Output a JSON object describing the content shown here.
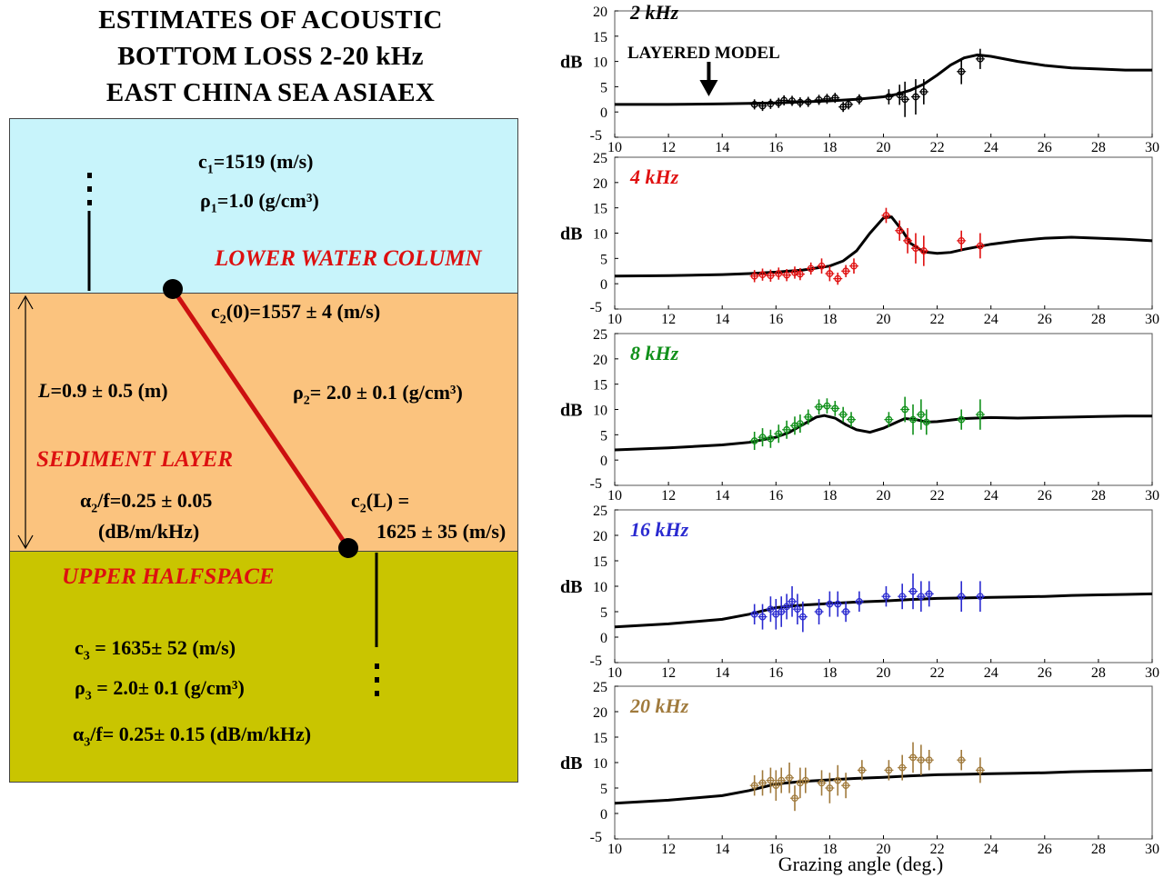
{
  "title_lines": [
    "ESTIMATES OF ACOUSTIC",
    "BOTTOM LOSS 2-20 kHz",
    "EAST CHINA SEA ASIAEX"
  ],
  "layers": {
    "water": {
      "name": "LOWER WATER COLUMN",
      "c1": "c",
      "c1_sub": "1",
      "c1_val": "=1519 (m/s)",
      "rho1": "ρ",
      "rho1_sub": "1",
      "rho1_val": "=1.0 (g/cm³)"
    },
    "sediment": {
      "name": "SEDIMENT LAYER",
      "c2_0_a": "c",
      "c2_0_sub": "2",
      "c2_0_b": "(0)=1557 ± 4 (m/s)",
      "L": "L",
      "L_val": "=0.9 ± 0.5 (m)",
      "rho2": "ρ",
      "rho2_sub": "2",
      "rho2_val": "= 2.0 ± 0.1 (g/cm³)",
      "alpha2": "α",
      "alpha2_sub": "2",
      "alpha2_val": "/f=0.25 ± 0.05",
      "alpha2_units": "(dB/m/kHz)",
      "c2_L_a": "c",
      "c2_L_sub": "2",
      "c2_L_b": "(L) =",
      "c2_L_val": "1625 ± 35 (m/s)"
    },
    "halfspace": {
      "name": "UPPER HALFSPACE",
      "c3": "c",
      "c3_sub": "3",
      "c3_val": " = 1635± 52 (m/s)",
      "rho3": "ρ",
      "rho3_sub": "3",
      "rho3_val": " = 2.0± 0.1 (g/cm³)",
      "alpha3": "α",
      "alpha3_sub": "3",
      "alpha3_val": "/f= 0.25± 0.15 (dB/m/kHz)"
    }
  },
  "colors": {
    "water": "#c8f4fb",
    "sediment": "#fbc37e",
    "halfspace": "#c9c500",
    "profile_line": "#cc1010",
    "label_red": "#dd1010"
  },
  "chart_data": [
    {
      "type": "scatter",
      "freq_label": "2 kHz",
      "color": "#000000",
      "ylabel": "dB",
      "ylim": [
        -5,
        20
      ],
      "yticks": [
        -5,
        0,
        5,
        10,
        15,
        20
      ],
      "xlim": [
        10,
        30
      ],
      "xticks": [
        10,
        12,
        14,
        16,
        18,
        20,
        22,
        24,
        26,
        28,
        30
      ],
      "annotation": "LAYERED MODEL",
      "annotation_arrow_x": 13.5,
      "model_line": {
        "x": [
          10,
          12,
          14,
          15,
          16,
          17,
          18,
          19,
          20,
          20.5,
          21,
          21.5,
          22,
          22.5,
          23,
          23.5,
          24,
          25,
          26,
          27,
          28,
          29,
          30
        ],
        "y": [
          1.5,
          1.5,
          1.6,
          1.7,
          1.8,
          2.0,
          2.2,
          2.5,
          3.0,
          3.5,
          4.3,
          5.5,
          7.3,
          9.3,
          10.7,
          11.3,
          11.0,
          10.0,
          9.2,
          8.7,
          8.5,
          8.3,
          8.3
        ]
      },
      "measurements": [
        {
          "x": 15.2,
          "y": 1.5,
          "err": 1.0
        },
        {
          "x": 15.5,
          "y": 1.2,
          "err": 1.0
        },
        {
          "x": 15.8,
          "y": 1.6,
          "err": 1.0
        },
        {
          "x": 16.1,
          "y": 1.8,
          "err": 1.0
        },
        {
          "x": 16.3,
          "y": 2.3,
          "err": 1.0
        },
        {
          "x": 16.6,
          "y": 2.2,
          "err": 1.0
        },
        {
          "x": 16.9,
          "y": 1.9,
          "err": 1.0
        },
        {
          "x": 17.2,
          "y": 2.0,
          "err": 1.0
        },
        {
          "x": 17.6,
          "y": 2.4,
          "err": 1.0
        },
        {
          "x": 17.9,
          "y": 2.6,
          "err": 1.0
        },
        {
          "x": 18.2,
          "y": 2.8,
          "err": 1.0
        },
        {
          "x": 18.5,
          "y": 1.0,
          "err": 1.0
        },
        {
          "x": 18.7,
          "y": 1.5,
          "err": 1.0
        },
        {
          "x": 19.1,
          "y": 2.5,
          "err": 1.0
        },
        {
          "x": 20.2,
          "y": 3.0,
          "err": 1.5
        },
        {
          "x": 20.6,
          "y": 3.4,
          "err": 2.0
        },
        {
          "x": 20.8,
          "y": 2.5,
          "err": 3.5
        },
        {
          "x": 21.2,
          "y": 3.0,
          "err": 3.5
        },
        {
          "x": 21.5,
          "y": 4.0,
          "err": 2.5
        },
        {
          "x": 22.9,
          "y": 8.0,
          "err": 2.5
        },
        {
          "x": 23.6,
          "y": 10.5,
          "err": 2.0
        }
      ]
    },
    {
      "type": "scatter",
      "freq_label": "4 kHz",
      "color": "#e01010",
      "ylabel": "dB",
      "ylim": [
        -5,
        25
      ],
      "yticks": [
        -5,
        0,
        5,
        10,
        15,
        20,
        25
      ],
      "xlim": [
        10,
        30
      ],
      "xticks": [
        10,
        12,
        14,
        16,
        18,
        20,
        22,
        24,
        26,
        28,
        30
      ],
      "model_line": {
        "x": [
          10,
          12,
          14,
          15,
          16,
          17,
          18,
          18.5,
          19,
          19.5,
          20,
          20.3,
          20.7,
          21,
          21.5,
          22,
          22.5,
          23,
          24,
          25,
          26,
          27,
          28,
          29,
          30
        ],
        "y": [
          1.5,
          1.6,
          1.8,
          2.0,
          2.3,
          2.7,
          3.5,
          4.5,
          6.5,
          10.0,
          13.0,
          13.2,
          10.5,
          8.0,
          6.3,
          6.0,
          6.2,
          6.8,
          7.8,
          8.5,
          9.0,
          9.2,
          9.0,
          8.8,
          8.5
        ]
      },
      "measurements": [
        {
          "x": 15.2,
          "y": 1.5,
          "err": 1.2
        },
        {
          "x": 15.5,
          "y": 1.8,
          "err": 1.2
        },
        {
          "x": 15.8,
          "y": 1.6,
          "err": 1.2
        },
        {
          "x": 16.1,
          "y": 2.0,
          "err": 1.2
        },
        {
          "x": 16.4,
          "y": 1.7,
          "err": 1.2
        },
        {
          "x": 16.7,
          "y": 2.2,
          "err": 1.2
        },
        {
          "x": 16.9,
          "y": 1.9,
          "err": 1.2
        },
        {
          "x": 17.3,
          "y": 3.0,
          "err": 1.2
        },
        {
          "x": 17.7,
          "y": 3.5,
          "err": 1.5
        },
        {
          "x": 18.0,
          "y": 2.0,
          "err": 1.5
        },
        {
          "x": 18.3,
          "y": 1.0,
          "err": 1.2
        },
        {
          "x": 18.6,
          "y": 2.5,
          "err": 1.2
        },
        {
          "x": 18.9,
          "y": 3.5,
          "err": 1.5
        },
        {
          "x": 20.1,
          "y": 13.5,
          "err": 1.5
        },
        {
          "x": 20.6,
          "y": 10.5,
          "err": 2.0
        },
        {
          "x": 20.9,
          "y": 8.5,
          "err": 2.5
        },
        {
          "x": 21.2,
          "y": 7.0,
          "err": 3.0
        },
        {
          "x": 21.5,
          "y": 6.5,
          "err": 3.0
        },
        {
          "x": 22.9,
          "y": 8.5,
          "err": 2.0
        },
        {
          "x": 23.6,
          "y": 7.5,
          "err": 2.5
        }
      ]
    },
    {
      "type": "scatter",
      "freq_label": "8 kHz",
      "color": "#10901a",
      "ylabel": "dB",
      "ylim": [
        -5,
        25
      ],
      "yticks": [
        -5,
        0,
        5,
        10,
        15,
        20,
        25
      ],
      "xlim": [
        10,
        30
      ],
      "xticks": [
        10,
        12,
        14,
        16,
        18,
        20,
        22,
        24,
        26,
        28,
        30
      ],
      "model_line": {
        "x": [
          10,
          12,
          14,
          15,
          16,
          16.5,
          17,
          17.5,
          17.8,
          18.2,
          18.6,
          19,
          19.5,
          20,
          20.5,
          20.8,
          21.2,
          21.6,
          22,
          23,
          24,
          25,
          26,
          27,
          28,
          29,
          30
        ],
        "y": [
          2.0,
          2.4,
          3.0,
          3.5,
          4.5,
          5.5,
          7.0,
          8.5,
          8.8,
          8.3,
          7.0,
          6.0,
          5.5,
          6.3,
          7.5,
          8.2,
          8.0,
          7.5,
          7.6,
          8.2,
          8.4,
          8.3,
          8.4,
          8.5,
          8.6,
          8.7,
          8.7
        ]
      },
      "measurements": [
        {
          "x": 15.2,
          "y": 3.8,
          "err": 1.8
        },
        {
          "x": 15.5,
          "y": 4.5,
          "err": 1.8
        },
        {
          "x": 15.8,
          "y": 4.2,
          "err": 1.8
        },
        {
          "x": 16.1,
          "y": 5.2,
          "err": 1.8
        },
        {
          "x": 16.4,
          "y": 6.0,
          "err": 1.8
        },
        {
          "x": 16.7,
          "y": 6.8,
          "err": 1.8
        },
        {
          "x": 16.9,
          "y": 7.2,
          "err": 1.8
        },
        {
          "x": 17.2,
          "y": 8.5,
          "err": 1.5
        },
        {
          "x": 17.6,
          "y": 10.5,
          "err": 1.5
        },
        {
          "x": 17.9,
          "y": 10.7,
          "err": 1.5
        },
        {
          "x": 18.2,
          "y": 10.2,
          "err": 1.5
        },
        {
          "x": 18.5,
          "y": 9.0,
          "err": 1.5
        },
        {
          "x": 18.8,
          "y": 8.0,
          "err": 1.5
        },
        {
          "x": 20.2,
          "y": 8.0,
          "err": 1.5
        },
        {
          "x": 20.8,
          "y": 10.0,
          "err": 2.5
        },
        {
          "x": 21.1,
          "y": 8.0,
          "err": 3.0
        },
        {
          "x": 21.4,
          "y": 9.0,
          "err": 3.0
        },
        {
          "x": 21.6,
          "y": 7.5,
          "err": 2.5
        },
        {
          "x": 22.9,
          "y": 8.0,
          "err": 2.0
        },
        {
          "x": 23.6,
          "y": 9.0,
          "err": 3.0
        }
      ]
    },
    {
      "type": "scatter",
      "freq_label": "16 kHz",
      "color": "#2a2ad0",
      "ylabel": "dB",
      "ylim": [
        -5,
        25
      ],
      "yticks": [
        -5,
        0,
        5,
        10,
        15,
        20,
        25
      ],
      "xlim": [
        10,
        30
      ],
      "xticks": [
        10,
        12,
        14,
        16,
        18,
        20,
        22,
        24,
        26,
        28,
        30
      ],
      "model_line": {
        "x": [
          10,
          12,
          14,
          15,
          16,
          17,
          18,
          19,
          20,
          21,
          22,
          23,
          24,
          25,
          26,
          27,
          28,
          29,
          30
        ],
        "y": [
          2.0,
          2.6,
          3.5,
          4.5,
          5.8,
          6.3,
          6.6,
          6.9,
          7.1,
          7.4,
          7.6,
          7.7,
          7.8,
          7.9,
          8.0,
          8.2,
          8.3,
          8.4,
          8.5
        ]
      },
      "measurements": [
        {
          "x": 15.2,
          "y": 4.5,
          "err": 2.0
        },
        {
          "x": 15.5,
          "y": 4.0,
          "err": 2.5
        },
        {
          "x": 15.8,
          "y": 5.5,
          "err": 2.5
        },
        {
          "x": 16.0,
          "y": 4.5,
          "err": 3.0
        },
        {
          "x": 16.2,
          "y": 5.0,
          "err": 3.0
        },
        {
          "x": 16.4,
          "y": 6.0,
          "err": 2.5
        },
        {
          "x": 16.6,
          "y": 7.0,
          "err": 3.0
        },
        {
          "x": 16.8,
          "y": 5.5,
          "err": 3.0
        },
        {
          "x": 17.0,
          "y": 4.0,
          "err": 3.0
        },
        {
          "x": 17.6,
          "y": 5.0,
          "err": 2.5
        },
        {
          "x": 18.0,
          "y": 6.5,
          "err": 2.5
        },
        {
          "x": 18.3,
          "y": 6.5,
          "err": 2.5
        },
        {
          "x": 18.6,
          "y": 5.0,
          "err": 2.0
        },
        {
          "x": 19.1,
          "y": 7.0,
          "err": 2.0
        },
        {
          "x": 20.1,
          "y": 8.0,
          "err": 2.0
        },
        {
          "x": 20.7,
          "y": 8.0,
          "err": 2.5
        },
        {
          "x": 21.1,
          "y": 9.0,
          "err": 3.5
        },
        {
          "x": 21.4,
          "y": 8.0,
          "err": 3.0
        },
        {
          "x": 21.7,
          "y": 8.5,
          "err": 2.5
        },
        {
          "x": 22.9,
          "y": 8.0,
          "err": 3.0
        },
        {
          "x": 23.6,
          "y": 8.0,
          "err": 3.0
        }
      ]
    },
    {
      "type": "scatter",
      "freq_label": "20 kHz",
      "color": "#a07a3c",
      "ylabel": "dB",
      "ylim": [
        -5,
        25
      ],
      "yticks": [
        -5,
        0,
        5,
        10,
        15,
        20,
        25
      ],
      "xlim": [
        10,
        30
      ],
      "xticks": [
        10,
        12,
        14,
        16,
        18,
        20,
        22,
        24,
        26,
        28,
        30
      ],
      "xlabel": "Grazing angle (deg.)",
      "model_line": {
        "x": [
          10,
          12,
          14,
          15,
          16,
          17,
          18,
          19,
          20,
          21,
          22,
          23,
          24,
          25,
          26,
          27,
          28,
          29,
          30
        ],
        "y": [
          2.0,
          2.6,
          3.5,
          4.5,
          5.8,
          6.3,
          6.6,
          6.9,
          7.1,
          7.4,
          7.6,
          7.7,
          7.8,
          7.9,
          8.0,
          8.2,
          8.3,
          8.4,
          8.5
        ]
      },
      "measurements": [
        {
          "x": 15.2,
          "y": 5.5,
          "err": 2.0
        },
        {
          "x": 15.5,
          "y": 6.0,
          "err": 2.5
        },
        {
          "x": 15.8,
          "y": 6.5,
          "err": 2.5
        },
        {
          "x": 16.0,
          "y": 5.5,
          "err": 3.0
        },
        {
          "x": 16.2,
          "y": 6.5,
          "err": 2.5
        },
        {
          "x": 16.5,
          "y": 7.0,
          "err": 3.0
        },
        {
          "x": 16.7,
          "y": 3.0,
          "err": 2.5
        },
        {
          "x": 16.9,
          "y": 6.0,
          "err": 3.0
        },
        {
          "x": 17.1,
          "y": 6.5,
          "err": 2.5
        },
        {
          "x": 17.7,
          "y": 6.0,
          "err": 2.5
        },
        {
          "x": 18.0,
          "y": 5.0,
          "err": 3.0
        },
        {
          "x": 18.3,
          "y": 6.5,
          "err": 3.0
        },
        {
          "x": 18.6,
          "y": 5.5,
          "err": 2.5
        },
        {
          "x": 19.2,
          "y": 8.5,
          "err": 2.0
        },
        {
          "x": 20.2,
          "y": 8.5,
          "err": 2.0
        },
        {
          "x": 20.7,
          "y": 9.0,
          "err": 2.5
        },
        {
          "x": 21.1,
          "y": 11.0,
          "err": 3.0
        },
        {
          "x": 21.4,
          "y": 10.5,
          "err": 3.0
        },
        {
          "x": 21.7,
          "y": 10.5,
          "err": 2.0
        },
        {
          "x": 22.9,
          "y": 10.5,
          "err": 2.0
        },
        {
          "x": 23.6,
          "y": 8.5,
          "err": 2.5
        }
      ]
    }
  ]
}
